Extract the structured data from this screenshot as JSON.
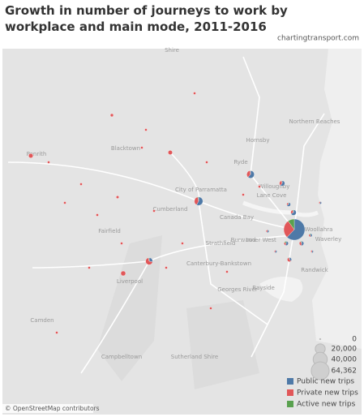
{
  "title": "Growth in number of journeys to work by workplace and main mode, 2011-2016",
  "source": "chartingtransport.com",
  "attribution": "© OpenStreetMap contributors",
  "places": [
    "Blacktown",
    "Penrith",
    "City of Parramatta",
    "Ryde",
    "Hornsby",
    "Northern Beaches",
    "Willoughby",
    "Lane Cove",
    "Cumberland",
    "Fairfield",
    "Canada Bay",
    "Strathfield",
    "Burwood",
    "Inner West",
    "Woollahra",
    "Waverley",
    "Canterbury-Bankstown",
    "Liverpool",
    "Georges River",
    "Bayside",
    "Randwick",
    "Camden",
    "Campbelltown",
    "Sutherland Shire",
    "Shire"
  ],
  "size_legend": [
    0,
    {
      "value": 20000,
      "label": "20,000"
    },
    {
      "value": 40000,
      "label": "40,000"
    },
    {
      "value": 64362,
      "label": "64,362"
    }
  ],
  "modes": [
    {
      "name": "Public new trips",
      "color": "#4e79a7"
    },
    {
      "name": "Private new trips",
      "color": "#e15759"
    },
    {
      "name": "Active new trips",
      "color": "#59a14f"
    }
  ],
  "markers": [
    {
      "public": 40000,
      "private": 18000,
      "active": 6362
    },
    {
      "public": 6000,
      "private": 4000,
      "active": 300
    },
    {
      "public": 5000,
      "private": 3000,
      "active": 100
    },
    {
      "public": 2500,
      "private": 1500,
      "active": 100
    },
    {
      "public": 3000,
      "private": 1200,
      "active": 200
    },
    {
      "public": 2000,
      "private": 5000,
      "active": 200
    },
    {
      "private": 3000
    },
    {
      "private": 2800
    },
    {
      "private": 3500
    },
    {
      "public": 1500,
      "private": 800,
      "active": 400
    },
    {
      "public": 1500,
      "private": 1200,
      "active": 200
    },
    {
      "public": 1000,
      "private": 1600,
      "active": 100
    },
    {
      "public": 800,
      "private": 600,
      "active": 200
    },
    {
      "public": 1500,
      "private": 600,
      "active": 100
    },
    {
      "private": 1500
    },
    {
      "private": 1200
    },
    {
      "private": 1000
    },
    {
      "private": 900
    },
    {
      "private": 800
    },
    {
      "private": 700
    },
    {
      "private": 600
    },
    {
      "private": 600
    },
    {
      "private": 500
    },
    {
      "private": 500
    },
    {
      "private": 400
    },
    {
      "private": 400
    },
    {
      "private": 300
    },
    {
      "private": 300
    },
    {
      "private": 300
    },
    {
      "private": 200
    },
    {
      "private": 200
    },
    {
      "private": 200
    },
    {
      "private": 200
    },
    {
      "private": 150
    },
    {
      "public": 600,
      "private": 400
    },
    {
      "public": 500,
      "private": 300
    },
    {
      "public": 400,
      "private": 300
    },
    {
      "public": 700,
      "private": 500
    }
  ]
}
